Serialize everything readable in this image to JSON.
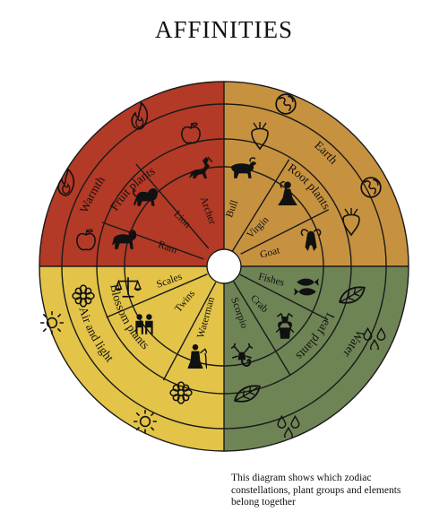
{
  "title": "AFFINITIES",
  "caption": {
    "line1": "This diagram shows which zodiac",
    "line2": "constellations, plant groups and elements",
    "line3": "belong together"
  },
  "colors": {
    "warmth": "#b33a26",
    "earth": "#c7923f",
    "air": "#e3c448",
    "water": "#6e8455",
    "line": "#1a1a1a"
  },
  "quadrants": [
    {
      "key": "warmth",
      "color": "#b33a26",
      "element": "Warmth",
      "element_icon": "flame-icon",
      "plant": "Fruit plants",
      "plant_icon": "apple-icon",
      "signs": [
        {
          "label": "Archer",
          "icon": "archer-icon"
        },
        {
          "label": "Lion",
          "icon": "lion-icon"
        },
        {
          "label": "Ram",
          "icon": "ram-icon"
        }
      ]
    },
    {
      "key": "earth",
      "color": "#c7923f",
      "element": "Earth",
      "element_icon": "globe-icon",
      "plant": "Root plants",
      "plant_icon": "beet-icon",
      "signs": [
        {
          "label": "Bull",
          "icon": "bull-icon"
        },
        {
          "label": "Virgin",
          "icon": "virgin-icon"
        },
        {
          "label": "Goat",
          "icon": "goat-icon"
        }
      ]
    },
    {
      "key": "water",
      "color": "#6e8455",
      "element": "Water",
      "element_icon": "drops-icon",
      "plant": "Leaf plants",
      "plant_icon": "leaf-icon",
      "signs": [
        {
          "label": "Fishes",
          "icon": "fishes-icon"
        },
        {
          "label": "Crab",
          "icon": "crab-icon"
        },
        {
          "label": "Scorpio",
          "icon": "scorpion-icon"
        }
      ]
    },
    {
      "key": "air",
      "color": "#e3c448",
      "element": "Air and light",
      "element_icon": "sun-icon",
      "plant": "Blossom plants",
      "plant_icon": "flower-icon",
      "signs": [
        {
          "label": "Waterman",
          "icon": "waterman-icon"
        },
        {
          "label": "Twins",
          "icon": "twins-icon"
        },
        {
          "label": "Scales",
          "icon": "scales-icon"
        }
      ]
    }
  ]
}
